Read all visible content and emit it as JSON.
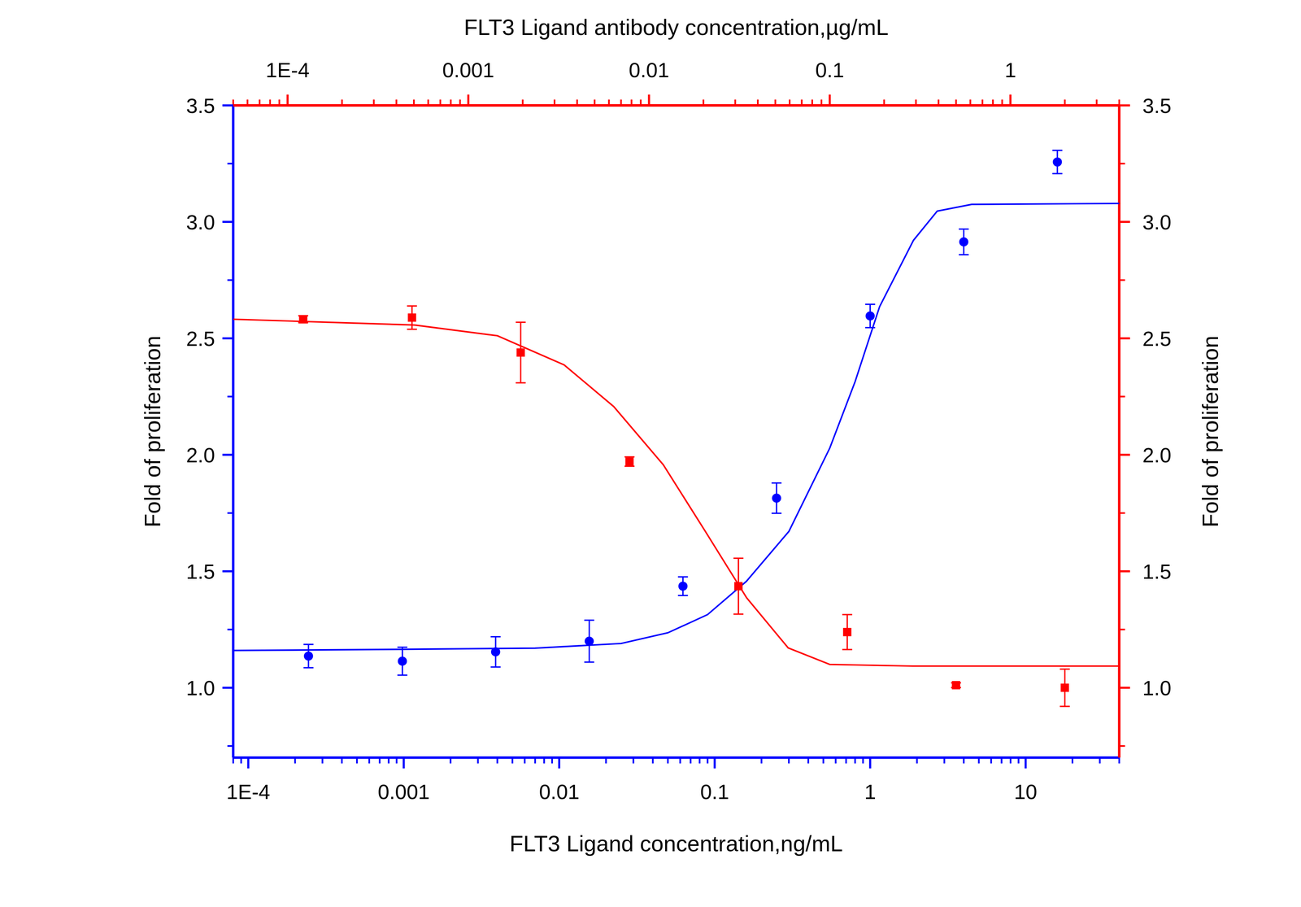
{
  "chart_data": {
    "type": "scatter",
    "xlabel": "FLT3 Ligand concentration,ng/mL",
    "x2label": "FLT3 Ligand antibody concentration,µg/mL",
    "ylabel": "Fold of proliferation",
    "y2label": "Fold of proliferation",
    "log": "x",
    "xlim": [
      8e-05,
      40
    ],
    "xticks": [
      {
        "value": 0.0001,
        "label": "1E-4"
      },
      0.001,
      0.01,
      0.1,
      1,
      10
    ],
    "x2lim": [
      5e-05,
      4
    ],
    "x2ticks": [
      {
        "value": 0.0001,
        "label": "1E-4"
      },
      0.001,
      0.01,
      0.1,
      1
    ],
    "ylim": [
      0.7,
      3.5
    ],
    "yticks": [
      {
        "value": 1,
        "label": "1.0"
      },
      1.5,
      {
        "value": 2,
        "label": "2.0"
      },
      2.5,
      {
        "value": 3,
        "label": "3.0"
      },
      3.5
    ],
    "y2lim": [
      0.7,
      3.5
    ],
    "y2ticks": [
      {
        "value": 1,
        "label": "1.0"
      },
      1.5,
      {
        "value": 2,
        "label": "2.0"
      },
      2.5,
      {
        "value": 3,
        "label": "3.0"
      },
      3.5
    ],
    "series": [
      {
        "type": "scatter",
        "color": "#0000ff",
        "marker": "circle",
        "x": [
          0.000244,
          0.00098,
          0.0039,
          0.0156,
          0.0625,
          0.25,
          1,
          4,
          16
        ],
        "values": [
          1.136,
          1.114,
          1.154,
          1.2,
          1.436,
          1.814,
          2.596,
          2.914,
          3.257
        ],
        "errors": [
          0.05,
          0.06,
          0.065,
          0.09,
          0.04,
          0.065,
          0.05,
          0.055,
          0.05
        ]
      },
      {
        "type": "line",
        "color": "#0000ff",
        "line_style": "solid",
        "x": [
          8e-05,
          0.001,
          0.007,
          0.025,
          0.05,
          0.09,
          0.16,
          0.3,
          0.55,
          0.8,
          1.15,
          1.9,
          2.7,
          4.5,
          40
        ],
        "values": [
          1.16,
          1.165,
          1.17,
          1.19,
          1.236,
          1.314,
          1.457,
          1.671,
          2.029,
          2.314,
          2.636,
          2.921,
          3.046,
          3.075,
          3.079
        ]
      },
      {
        "type": "scatter",
        "color": "#ff0000",
        "marker": "square",
        "axis": "y2",
        "x": [
          0.000122,
          0.000488,
          0.00195,
          0.0078,
          0.03125,
          0.125,
          0.5,
          2
        ],
        "values": [
          2.582,
          2.589,
          2.439,
          1.971,
          1.436,
          1.239,
          1.011,
          1.0
        ],
        "errors": [
          0.015,
          0.05,
          0.13,
          0.02,
          0.12,
          0.075,
          0.01,
          0.08
        ]
      },
      {
        "type": "line",
        "color": "#ff0000",
        "line_style": "solid",
        "axis": "y2",
        "x": [
          5e-05,
          0.000505,
          0.00145,
          0.00339,
          0.00638,
          0.012,
          0.0205,
          0.0347,
          0.0589,
          0.1,
          0.288,
          4
        ],
        "values": [
          2.582,
          2.557,
          2.511,
          2.386,
          2.207,
          1.957,
          1.671,
          1.386,
          1.171,
          1.1,
          1.093,
          1.093
        ]
      }
    ]
  }
}
